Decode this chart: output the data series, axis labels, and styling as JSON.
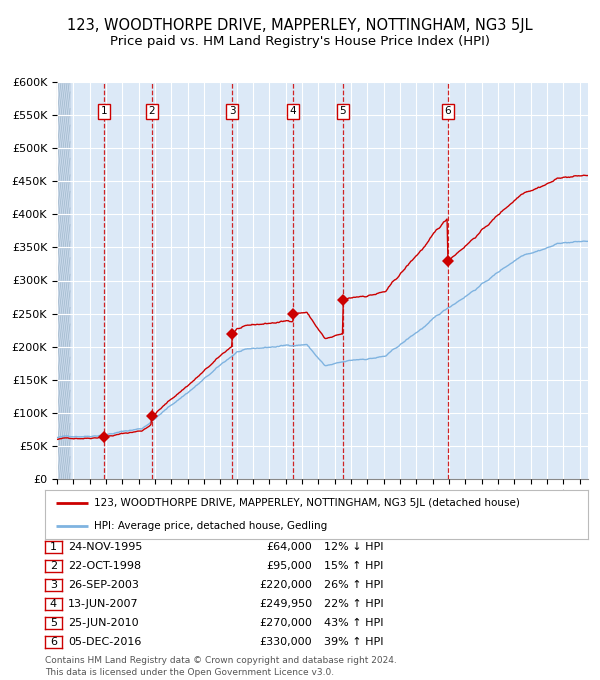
{
  "title": "123, WOODTHORPE DRIVE, MAPPERLEY, NOTTINGHAM, NG3 5JL",
  "subtitle": "Price paid vs. HM Land Registry's House Price Index (HPI)",
  "red_line_label": "123, WOODTHORPE DRIVE, MAPPERLEY, NOTTINGHAM, NG3 5JL (detached house)",
  "blue_line_label": "HPI: Average price, detached house, Gedling",
  "footer_line1": "Contains HM Land Registry data © Crown copyright and database right 2024.",
  "footer_line2": "This data is licensed under the Open Government Licence v3.0.",
  "transactions": [
    {
      "num": 1,
      "date": "24-NOV-1995",
      "price": 64000,
      "pct": "12%",
      "dir": "↓",
      "year": 1995.9
    },
    {
      "num": 2,
      "date": "22-OCT-1998",
      "price": 95000,
      "pct": "15%",
      "dir": "↑",
      "year": 1998.8
    },
    {
      "num": 3,
      "date": "26-SEP-2003",
      "price": 220000,
      "pct": "26%",
      "dir": "↑",
      "year": 2003.73
    },
    {
      "num": 4,
      "date": "13-JUN-2007",
      "price": 249950,
      "pct": "22%",
      "dir": "↑",
      "year": 2007.45
    },
    {
      "num": 5,
      "date": "25-JUN-2010",
      "price": 270000,
      "pct": "43%",
      "dir": "↑",
      "year": 2010.48
    },
    {
      "num": 6,
      "date": "05-DEC-2016",
      "price": 330000,
      "pct": "39%",
      "dir": "↑",
      "year": 2016.92
    }
  ],
  "ylim": [
    0,
    600000
  ],
  "xlim_start": 1993.0,
  "xlim_end": 2025.5,
  "bg_color": "#dce9f7",
  "hatch_bg_color": "#c8d8ea",
  "grid_color": "#ffffff",
  "red_color": "#cc0000",
  "blue_color": "#7fb3e0",
  "title_fontsize": 10.5,
  "subtitle_fontsize": 9.5,
  "tick_fontsize": 8
}
